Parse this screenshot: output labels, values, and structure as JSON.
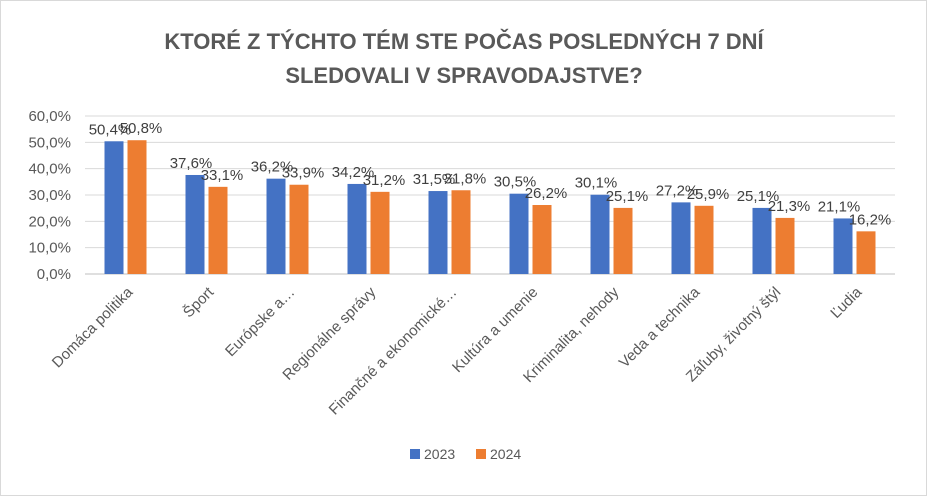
{
  "chart_data": {
    "type": "bar",
    "title_lines": [
      "KTORÉ Z TÝCHTO TÉM STE POČAS POSLEDNÝCH 7 DNÍ",
      "SLEDOVALI V SPRAVODAJSTVE?"
    ],
    "categories": [
      "Domáca politika",
      "Šport",
      "Európske a…",
      "Regionálne správy",
      "Finančné a ekonomické…",
      "Kultúra a umenie",
      "Kriminalita, nehody",
      "Veda a technika",
      "Záľuby, životný štýl",
      "Ľudia"
    ],
    "series": [
      {
        "name": "2023",
        "color": "#4472c4",
        "values": [
          50.4,
          37.6,
          36.2,
          34.2,
          31.5,
          30.5,
          30.1,
          27.2,
          25.1,
          21.1
        ]
      },
      {
        "name": "2024",
        "color": "#ed7d31",
        "values": [
          50.8,
          33.1,
          33.9,
          31.2,
          31.8,
          26.2,
          25.1,
          25.9,
          21.3,
          16.2
        ]
      }
    ],
    "ylim": [
      0,
      60
    ],
    "yticks": [
      "0,0%",
      "10,0%",
      "20,0%",
      "30,0%",
      "40,0%",
      "50,0%",
      "60,0%"
    ],
    "grid": true,
    "legend": "bottom"
  }
}
